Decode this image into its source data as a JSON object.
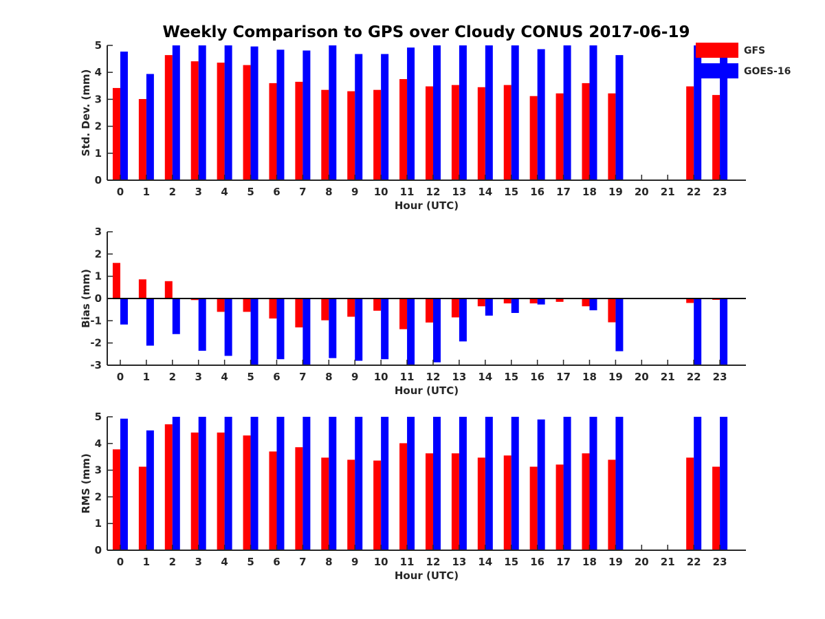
{
  "title": "Weekly Comparison to GPS over Cloudy CONUS 2017-06-19",
  "legend": {
    "placement": "top-right",
    "entries": [
      {
        "name": "GFS",
        "color": "#ff0000"
      },
      {
        "name": "GOES-16",
        "color": "#0000ff"
      }
    ]
  },
  "chart_data": [
    {
      "type": "bar",
      "ylabel": "Std. Dev. (mm)",
      "xlabel": "Hour (UTC)",
      "ylim": [
        0,
        5
      ],
      "yticks": [
        "0",
        "1",
        "2",
        "3",
        "4",
        "5"
      ],
      "categories": [
        "0",
        "1",
        "2",
        "3",
        "4",
        "5",
        "6",
        "7",
        "8",
        "9",
        "10",
        "11",
        "12",
        "13",
        "14",
        "15",
        "16",
        "17",
        "18",
        "19",
        "20",
        "21",
        "22",
        "23"
      ],
      "series": [
        {
          "name": "GFS",
          "color": "#ff0000",
          "values": [
            3.42,
            3.01,
            4.64,
            4.41,
            4.36,
            4.27,
            3.6,
            3.65,
            3.35,
            3.3,
            3.35,
            3.75,
            3.48,
            3.53,
            3.45,
            3.53,
            3.12,
            3.22,
            3.6,
            3.22,
            null,
            null,
            3.48,
            3.16
          ]
        },
        {
          "name": "GOES-16",
          "color": "#0000ff",
          "values": [
            4.77,
            3.94,
            5.0,
            5.0,
            5.0,
            4.96,
            4.84,
            4.81,
            5.0,
            4.68,
            4.68,
            4.92,
            5.0,
            5.0,
            5.0,
            5.0,
            4.86,
            5.0,
            5.0,
            4.64,
            null,
            null,
            5.0,
            5.0
          ]
        }
      ]
    },
    {
      "type": "bar",
      "ylabel": "Bias (mm)",
      "xlabel": "Hour (UTC)",
      "ylim": [
        -3,
        3
      ],
      "yticks": [
        "-3",
        "-2",
        "-1",
        "0",
        "1",
        "2",
        "3"
      ],
      "zero_line": true,
      "categories": [
        "0",
        "1",
        "2",
        "3",
        "4",
        "5",
        "6",
        "7",
        "8",
        "9",
        "10",
        "11",
        "12",
        "13",
        "14",
        "15",
        "16",
        "17",
        "18",
        "19",
        "20",
        "21",
        "22",
        "23"
      ],
      "series": [
        {
          "name": "GFS",
          "color": "#ff0000",
          "values": [
            1.6,
            0.86,
            0.78,
            -0.07,
            -0.6,
            -0.6,
            -0.9,
            -1.3,
            -0.98,
            -0.82,
            -0.55,
            -1.38,
            -1.08,
            -0.85,
            -0.35,
            -0.22,
            -0.22,
            -0.15,
            -0.35,
            -1.07,
            null,
            null,
            -0.2,
            -0.06
          ]
        },
        {
          "name": "GOES-16",
          "color": "#0000ff",
          "values": [
            -1.17,
            -2.12,
            -1.6,
            -2.35,
            -2.58,
            -3.0,
            -2.73,
            -3.0,
            -2.68,
            -2.8,
            -2.73,
            -3.0,
            -2.87,
            -1.93,
            -0.77,
            -0.65,
            -0.27,
            0.02,
            -0.53,
            -2.37,
            null,
            null,
            -3.0,
            -3.0
          ]
        }
      ]
    },
    {
      "type": "bar",
      "ylabel": "RMS (mm)",
      "xlabel": "Hour (UTC)",
      "ylim": [
        0,
        5
      ],
      "yticks": [
        "0",
        "1",
        "2",
        "3",
        "4",
        "5"
      ],
      "categories": [
        "0",
        "1",
        "2",
        "3",
        "4",
        "5",
        "6",
        "7",
        "8",
        "9",
        "10",
        "11",
        "12",
        "13",
        "14",
        "15",
        "16",
        "17",
        "18",
        "19",
        "20",
        "21",
        "22",
        "23"
      ],
      "series": [
        {
          "name": "GFS",
          "color": "#ff0000",
          "values": [
            3.78,
            3.13,
            4.72,
            4.41,
            4.41,
            4.3,
            3.7,
            3.86,
            3.47,
            3.39,
            3.36,
            4.01,
            3.63,
            3.63,
            3.47,
            3.55,
            3.13,
            3.21,
            3.63,
            3.39,
            null,
            null,
            3.47,
            3.13
          ]
        },
        {
          "name": "GOES-16",
          "color": "#0000ff",
          "values": [
            4.93,
            4.49,
            5.0,
            5.0,
            5.0,
            5.0,
            5.0,
            5.0,
            5.0,
            5.0,
            5.0,
            5.0,
            5.0,
            5.0,
            5.0,
            5.0,
            4.9,
            5.0,
            5.0,
            5.0,
            null,
            null,
            5.0,
            5.0
          ]
        }
      ]
    }
  ]
}
